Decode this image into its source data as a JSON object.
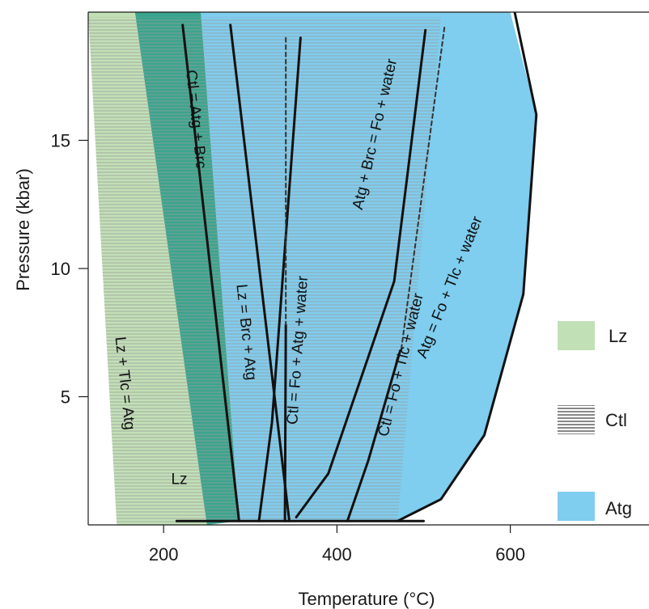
{
  "chart_data": {
    "type": "area",
    "title": "",
    "xlabel": "Temperature (°C)",
    "ylabel": "Pressure (kbar)",
    "xlim": [
      113,
      760
    ],
    "ylim": [
      0,
      20
    ],
    "x_ticks": [
      200,
      400,
      600
    ],
    "y_ticks": [
      5,
      10,
      15
    ],
    "grid": false,
    "legend_position": "right",
    "colors": {
      "lz": "#c2e0b6",
      "lz_stripe": "#a9c89e",
      "ctl_dark": "#3aa58e",
      "ctl_stripe": "#9a9a9a",
      "atg": "#7fcdef",
      "line": "#111111",
      "dashed": "#333333"
    },
    "legend": [
      {
        "label": "Lz",
        "key": "lz"
      },
      {
        "label": "Ctl",
        "key": "ctl"
      },
      {
        "label": "Atg",
        "key": "atg"
      }
    ],
    "fields": [
      {
        "label": "Lz",
        "key": "lz",
        "polygon": [
          [
            113,
            20
          ],
          [
            167,
            20
          ],
          [
            250,
            0
          ],
          [
            146,
            0
          ]
        ]
      },
      {
        "label": "",
        "key": "ctl_dark",
        "polygon": [
          [
            167,
            20
          ],
          [
            243,
            20
          ],
          [
            287,
            0.15
          ],
          [
            250,
            0
          ]
        ]
      },
      {
        "label": "",
        "key": "atg",
        "polygon": [
          [
            243,
            20
          ],
          [
            600,
            20
          ],
          [
            630,
            16
          ],
          [
            615,
            9
          ],
          [
            570,
            3.5
          ],
          [
            520,
            1
          ],
          [
            470,
            0.15
          ],
          [
            287,
            0.15
          ]
        ]
      }
    ],
    "striped_region": {
      "key": "ctl",
      "x_left_top": 113,
      "x_right_top": 520,
      "y_top": 19.7,
      "polygon": [
        [
          113,
          19.8
        ],
        [
          520,
          19.8
        ],
        [
          470,
          0.15
        ],
        [
          146,
          0
        ]
      ]
    },
    "reactions": [
      {
        "label": "Ctl = Atg + Brc",
        "style": "solid",
        "points": [
          [
            222,
            19.5
          ],
          [
            287,
            0.15
          ]
        ]
      },
      {
        "label": "Lz = Brc + Atg",
        "style": "solid",
        "points": [
          [
            277,
            19.5
          ],
          [
            345,
            0.15
          ]
        ]
      },
      {
        "label": "Ctl = Fo + Atg + water",
        "style": "solid",
        "points": [
          [
            341,
            7.8
          ],
          [
            340,
            0.15
          ]
        ]
      },
      {
        "label": "Atg + Brc = Fo + water",
        "style": "solid",
        "points": [
          [
            502,
            19.3
          ],
          [
            466,
            9.5
          ],
          [
            390,
            2
          ],
          [
            353,
            0.3
          ]
        ]
      },
      {
        "label": "Ctl = Fo + Tlc + water",
        "style": "solid",
        "points": [
          [
            473,
            6.8
          ],
          [
            436,
            2.5
          ],
          [
            412,
            0.15
          ]
        ]
      },
      {
        "label": "Atg = Fo + Tlc + water",
        "style": "solid",
        "points": [
          [
            605,
            20.0
          ],
          [
            630,
            16
          ],
          [
            615,
            9
          ],
          [
            570,
            3.5
          ],
          [
            520,
            1
          ],
          [
            470,
            0.15
          ]
        ]
      },
      {
        "label": "",
        "style": "solid",
        "points": [
          [
            215,
            0.15
          ],
          [
            500,
            0.15
          ]
        ]
      },
      {
        "label": "",
        "style": "solid",
        "points": [
          [
            310,
            0.15
          ],
          [
            325,
            4.0
          ],
          [
            358,
            19.0
          ]
        ]
      },
      {
        "label": "",
        "style": "dashed",
        "points": [
          [
            341,
            19.0
          ],
          [
            341,
            7.8
          ]
        ]
      },
      {
        "label": "",
        "style": "dashed",
        "points": [
          [
            524,
            19.4
          ],
          [
            474,
            6.8
          ]
        ]
      }
    ],
    "annotations": [
      {
        "text": "Lz + Tlc = Atg",
        "x": 150,
        "y": 5.5,
        "angle": 84
      },
      {
        "text": "Lz",
        "x": 218,
        "y": 1.6,
        "angle": 0
      },
      {
        "text": "Ctl = Atg + Brc",
        "x": 232,
        "y": 15.8,
        "angle": 84
      },
      {
        "text": "Lz = Brc + Atg",
        "x": 290,
        "y": 7.5,
        "angle": 84
      },
      {
        "text": "Ctl = Fo + Atg + water",
        "x": 360,
        "y": 6.8,
        "angle": -86
      },
      {
        "text": "Atg + Brc = Fo + water",
        "x": 449,
        "y": 15.2,
        "angle": -77
      },
      {
        "text": "Ctl = Fo + Tlc + water",
        "x": 479,
        "y": 6.2,
        "angle": -76
      },
      {
        "text": "Atg = Fo + Tlc + water",
        "x": 535,
        "y": 9.2,
        "angle": -68
      }
    ]
  }
}
